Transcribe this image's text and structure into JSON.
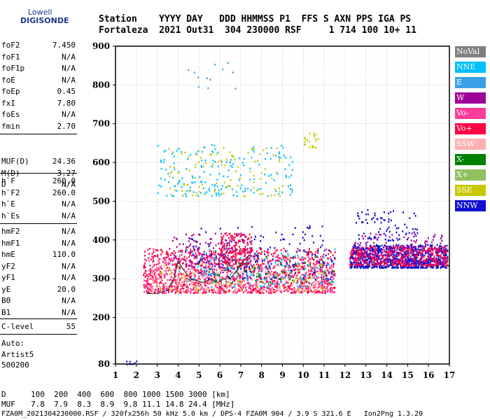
{
  "logo": {
    "line1": "Lowell",
    "line2": "DIGISONDE"
  },
  "header": {
    "line1": "Station    YYYY DAY   DDD HHMMSS P1  FFS S AXN PPS IGA PS",
    "line2": "Fortaleza  2021 Out31  304 230000 RSF     1 714 100 10+ 11"
  },
  "params_group1": [
    {
      "name": "foF2",
      "value": "7.450"
    },
    {
      "name": "foF1",
      "value": "N/A"
    },
    {
      "name": "foF1p",
      "value": "N/A"
    },
    {
      "name": "foE",
      "value": "N/A"
    },
    {
      "name": "foEp",
      "value": "0.45"
    },
    {
      "name": "fxI",
      "value": "7.80"
    },
    {
      "name": "foEs",
      "value": "N/A"
    },
    {
      "name": "fmin",
      "value": "2.70"
    }
  ],
  "params_group2": [
    {
      "name": "MUF(D)",
      "value": "24.36"
    },
    {
      "name": "M(D)",
      "value": "3.27"
    },
    {
      "name": "D",
      "value": "N/A"
    }
  ],
  "params_group3": [
    {
      "name": "h`F",
      "value": "260.0"
    },
    {
      "name": "h`F2",
      "value": "260.0"
    },
    {
      "name": "h`E",
      "value": "N/A"
    },
    {
      "name": "h`Es",
      "value": "N/A"
    }
  ],
  "params_group4": [
    {
      "name": "hmF2",
      "value": "N/A"
    },
    {
      "name": "hmF1",
      "value": "N/A"
    },
    {
      "name": "hmE",
      "value": "110.0"
    },
    {
      "name": "yF2",
      "value": "N/A"
    },
    {
      "name": "yF1",
      "value": "N/A"
    },
    {
      "name": "yE",
      "value": "20.0"
    },
    {
      "name": "B0",
      "value": "N/A"
    },
    {
      "name": "B1",
      "value": "N/A"
    }
  ],
  "params_group5": [
    {
      "name": "C-level",
      "value": "55"
    }
  ],
  "auto": {
    "line1": "Auto:",
    "line2": "Artist5",
    "line3": "500200"
  },
  "legend": [
    {
      "label": "NoVal",
      "color": "#808080"
    },
    {
      "label": "NNE",
      "color": "#00bfff"
    },
    {
      "label": "E",
      "color": "#3aa0e6"
    },
    {
      "label": "W",
      "color": "#a0009a"
    },
    {
      "label": "Vo-",
      "color": "#ff3c9a"
    },
    {
      "label": "Vo+",
      "color": "#ff0044"
    },
    {
      "label": "SSW",
      "color": "#ffb0b0"
    },
    {
      "label": "X-",
      "color": "#008000"
    },
    {
      "label": "X+",
      "color": "#90c060"
    },
    {
      "label": "SSE",
      "color": "#c8c800"
    },
    {
      "label": "NNW",
      "color": "#1010d0"
    }
  ],
  "footer": {
    "d_label": "D",
    "d_values": "100  200  400  600  800 1000 1500 3000 [km]",
    "muf_label": "MUF",
    "muf_values": "7.8  7.9  8.3  8.9  9.8 11.1 14.8 24.4 [MHz]",
    "info": "FZA0M_2021304230000.RSF / 320fx256h 50 kHz 5.0 km / DPS-4 FZA0M 904 / 3.9 S 321.6 E   Ion2Png 1.3.20"
  },
  "chart_data": {
    "type": "scatter",
    "xlabel": "",
    "ylabel": "",
    "xlim": [
      1,
      17
    ],
    "ylim": [
      80,
      900
    ],
    "xticks": [
      1,
      2,
      3,
      4,
      5,
      6,
      7,
      8,
      9,
      10,
      11,
      12,
      13,
      14,
      15,
      16,
      17
    ],
    "yticks": [
      80,
      200,
      300,
      400,
      500,
      600,
      700,
      800,
      900
    ],
    "grid": true,
    "legend_position": "right",
    "clusters": [
      {
        "series": "NNW",
        "x": [
          12.2,
          16.9
        ],
        "y": [
          330,
          390
        ],
        "n": 900
      },
      {
        "series": "Vo+",
        "x": [
          12.2,
          16.9
        ],
        "y": [
          335,
          385
        ],
        "n": 400
      },
      {
        "series": "W",
        "x": [
          12.3,
          16.8
        ],
        "y": [
          340,
          420
        ],
        "n": 150
      },
      {
        "series": "NNW",
        "x": [
          12.5,
          15.5
        ],
        "y": [
          400,
          480
        ],
        "n": 80
      },
      {
        "series": "Vo+",
        "x": [
          2.3,
          11.5
        ],
        "y": [
          265,
          380
        ],
        "n": 1100
      },
      {
        "series": "Vo-",
        "x": [
          2.3,
          11.5
        ],
        "y": [
          265,
          360
        ],
        "n": 500
      },
      {
        "series": "SSW",
        "x": [
          2.5,
          11.5
        ],
        "y": [
          270,
          340
        ],
        "n": 250
      },
      {
        "series": "NNW",
        "x": [
          4.5,
          11.5
        ],
        "y": [
          300,
          440
        ],
        "n": 200
      },
      {
        "series": "NNE",
        "x": [
          4.0,
          11.5
        ],
        "y": [
          280,
          380
        ],
        "n": 150
      },
      {
        "series": "W",
        "x": [
          3.7,
          7.5
        ],
        "y": [
          330,
          420
        ],
        "n": 160
      },
      {
        "series": "Vo+",
        "x": [
          6.0,
          7.5
        ],
        "y": [
          340,
          420
        ],
        "n": 150
      },
      {
        "series": "X-",
        "x": [
          5.5,
          11.5
        ],
        "y": [
          290,
          360
        ],
        "n": 60
      },
      {
        "series": "SSE",
        "x": [
          3.0,
          11.0
        ],
        "y": [
          270,
          340
        ],
        "n": 80
      },
      {
        "series": "NNE",
        "x": [
          3.0,
          9.5
        ],
        "y": [
          515,
          650
        ],
        "n": 180
      },
      {
        "series": "SSE",
        "x": [
          3.5,
          9.0
        ],
        "y": [
          515,
          640
        ],
        "n": 100
      },
      {
        "series": "E",
        "x": [
          3.8,
          7.0
        ],
        "y": [
          790,
          860
        ],
        "n": 12
      },
      {
        "series": "SSE",
        "x": [
          10.0,
          10.7
        ],
        "y": [
          640,
          680
        ],
        "n": 20
      },
      {
        "series": "NNW",
        "x": [
          1.5,
          2.0
        ],
        "y": [
          80,
          90
        ],
        "n": 8
      }
    ],
    "trace": {
      "series": "NoVal",
      "points": [
        [
          2.5,
          262
        ],
        [
          3.0,
          262
        ],
        [
          3.5,
          270
        ],
        [
          3.8,
          300
        ],
        [
          4.0,
          345
        ],
        [
          4.3,
          320
        ],
        [
          4.6,
          300
        ],
        [
          4.9,
          295
        ],
        [
          5.2,
          290
        ],
        [
          5.6,
          300
        ],
        [
          5.9,
          290
        ],
        [
          6.2,
          300
        ],
        [
          6.5,
          300
        ],
        [
          6.8,
          320
        ],
        [
          7.2,
          350
        ],
        [
          7.4,
          360
        ]
      ]
    }
  }
}
